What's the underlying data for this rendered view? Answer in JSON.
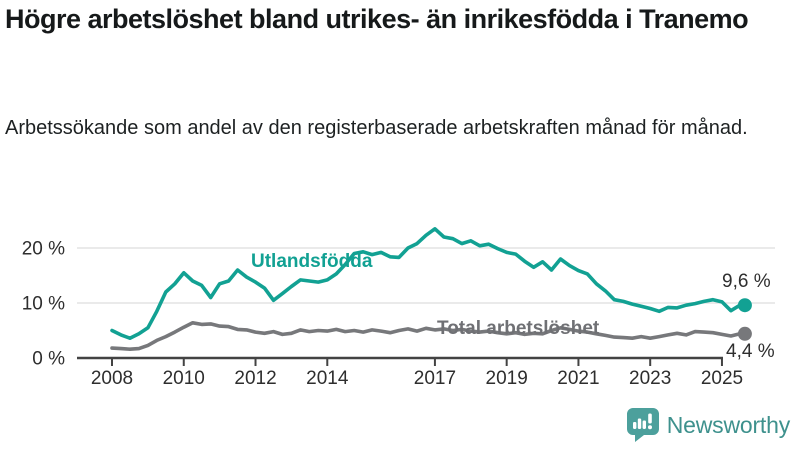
{
  "header": {
    "title": "Högre arbetslöshet bland utrikes- än inrikesfödda i Tranemo",
    "subtitle": "Arbetssökande som andel av den registerbaserade arbetskraften månad för månad."
  },
  "chart_data": {
    "type": "line",
    "title": "Högre arbetslöshet bland utrikes- än inrikesfödda i Tranemo",
    "subtitle": "Arbetssökande som andel av den registerbaserade arbetskraften månad för månad.",
    "unit": "%",
    "grid": "horizontal-light",
    "legend": "inline-labels-on-lines",
    "x_axis": {
      "ticks": [
        2008,
        2010,
        2012,
        2014,
        2017,
        2019,
        2021,
        2023,
        2025
      ],
      "range": [
        2007.0,
        2026.5
      ]
    },
    "y_axis": {
      "ticks": [
        0,
        10,
        20
      ],
      "tick_labels": [
        "0 %",
        "10 %",
        "20 %"
      ],
      "range": [
        0,
        24
      ]
    },
    "x": [
      2008,
      2008.25,
      2008.5,
      2008.75,
      2009,
      2009.25,
      2009.5,
      2009.75,
      2010,
      2010.25,
      2010.5,
      2010.75,
      2011,
      2011.25,
      2011.5,
      2011.75,
      2012,
      2012.25,
      2012.5,
      2012.75,
      2013,
      2013.25,
      2013.5,
      2013.75,
      2014,
      2014.25,
      2014.5,
      2014.75,
      2015,
      2015.25,
      2015.5,
      2015.75,
      2016,
      2016.25,
      2016.5,
      2016.75,
      2017,
      2017.25,
      2017.5,
      2017.75,
      2018,
      2018.25,
      2018.5,
      2018.75,
      2019,
      2019.25,
      2019.5,
      2019.75,
      2020,
      2020.25,
      2020.5,
      2020.75,
      2021,
      2021.25,
      2021.5,
      2021.75,
      2022,
      2022.25,
      2022.5,
      2022.75,
      2023,
      2023.25,
      2023.5,
      2023.75,
      2024,
      2024.25,
      2024.5,
      2024.75,
      2025,
      2025.25,
      2025.5
    ],
    "series": [
      {
        "name": "Utlandsfödda",
        "color": "#12a193",
        "end_label": "9,6 %",
        "end_value": 9.6,
        "values": [
          5.0,
          4.2,
          3.6,
          4.4,
          5.5,
          8.5,
          12.0,
          13.5,
          15.5,
          14.0,
          13.2,
          11.0,
          13.5,
          14.0,
          16.0,
          14.7,
          13.8,
          12.7,
          10.5,
          11.7,
          13.0,
          14.2,
          14.0,
          13.8,
          14.2,
          15.3,
          17.0,
          19.0,
          19.3,
          18.8,
          19.2,
          18.4,
          18.3,
          20.0,
          20.8,
          22.3,
          23.5,
          22.0,
          21.7,
          20.8,
          21.3,
          20.4,
          20.7,
          19.9,
          19.2,
          18.9,
          17.6,
          16.5,
          17.5,
          16.0,
          18.0,
          16.8,
          15.9,
          15.3,
          13.5,
          12.2,
          10.6,
          10.3,
          9.8,
          9.4,
          9.0,
          8.5,
          9.2,
          9.1,
          9.6,
          9.9,
          10.3,
          10.6,
          10.2,
          8.6,
          9.6
        ]
      },
      {
        "name": "Total arbetslöshet",
        "color": "#77787b",
        "end_label": "4,4 %",
        "end_value": 4.4,
        "values": [
          1.8,
          1.7,
          1.6,
          1.7,
          2.3,
          3.2,
          3.9,
          4.7,
          5.6,
          6.4,
          6.1,
          6.2,
          5.8,
          5.7,
          5.2,
          5.1,
          4.7,
          4.5,
          4.8,
          4.3,
          4.5,
          5.1,
          4.8,
          5.0,
          4.9,
          5.2,
          4.8,
          5.0,
          4.7,
          5.1,
          4.9,
          4.6,
          5.0,
          5.3,
          4.9,
          5.4,
          5.1,
          5.3,
          5.0,
          5.2,
          4.9,
          4.7,
          4.9,
          4.6,
          4.4,
          4.6,
          4.3,
          4.5,
          4.4,
          5.0,
          5.5,
          5.2,
          4.9,
          4.7,
          4.4,
          4.1,
          3.8,
          3.7,
          3.6,
          3.9,
          3.6,
          3.9,
          4.2,
          4.5,
          4.2,
          4.8,
          4.7,
          4.6,
          4.3,
          4.0,
          4.4
        ]
      }
    ],
    "colors": {
      "grid_line": "#e3e3e3",
      "axis_line": "#434343",
      "tick_label": "#2e2e2e"
    }
  },
  "footer": {
    "brand": "Newsworthy",
    "logo_icon": "bar-chart-speech-bubble-icon",
    "brand_color": "#3e918d",
    "icon_color": "#4ca09c"
  }
}
